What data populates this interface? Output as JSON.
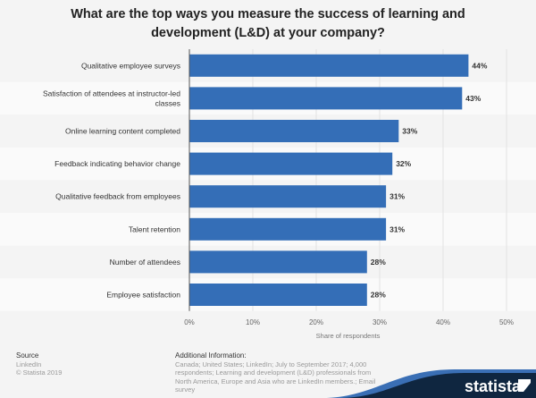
{
  "chart_data": {
    "type": "bar",
    "orientation": "horizontal",
    "title": "What are the top ways you measure the success of learning and development (L&D) at your company?",
    "categories": [
      "Qualitative employee surveys",
      "Satisfaction of attendees at instructor-led classes",
      "Online learning content completed",
      "Feedback indicating behavior change",
      "Qualitative feedback from employees",
      "Talent retention",
      "Number of attendees",
      "Employee satisfaction"
    ],
    "values": [
      44,
      43,
      33,
      32,
      31,
      31,
      28,
      28
    ],
    "value_labels": [
      "44%",
      "43%",
      "33%",
      "32%",
      "31%",
      "31%",
      "28%",
      "28%"
    ],
    "xlabel": "Share of respondents",
    "xlim": [
      0,
      50
    ],
    "ticks": [
      0,
      10,
      20,
      30,
      40,
      50
    ],
    "tick_labels": [
      "0%",
      "10%",
      "20%",
      "30%",
      "40%",
      "50%"
    ],
    "bar_color": "#346eb7",
    "grid": true
  },
  "footer": {
    "source_heading": "Source",
    "source_lines": [
      "LinkedIn",
      "© Statista 2019"
    ],
    "info_heading": "Additional Information:",
    "info_lines": [
      "Canada; United States; LinkedIn; July to September 2017; 4,000",
      "respondents; Learning and development (L&D) professionals from",
      "North America, Europe and Asia who are LinkedIn members.; Email",
      "survey"
    ],
    "logo": "statista"
  }
}
